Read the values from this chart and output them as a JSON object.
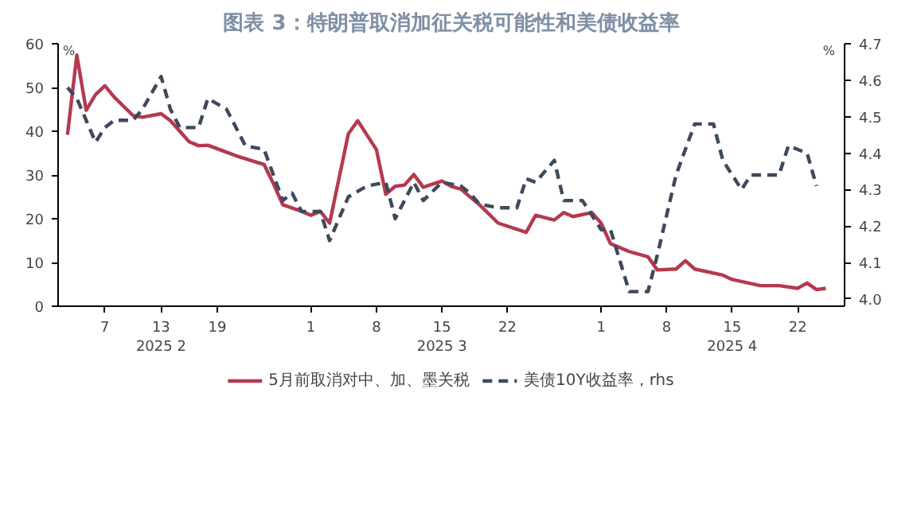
{
  "chart_data": {
    "type": "line",
    "title": "图表 3：特朗普取消加征关税可能性和美债收益率",
    "ylabel": "%",
    "y2label": "%",
    "xlim": [
      "2025-02-02",
      "2025-04-27"
    ],
    "xticks": [
      {
        "value": "2025-02-07",
        "label": "7"
      },
      {
        "value": "2025-02-13",
        "label": "13\n2025 2"
      },
      {
        "value": "2025-02-19",
        "label": "19"
      },
      {
        "value": "2025-03-01",
        "label": "1"
      },
      {
        "value": "2025-03-08",
        "label": "8"
      },
      {
        "value": "2025-03-15",
        "label": "15\n2025 3"
      },
      {
        "value": "2025-03-22",
        "label": "22"
      },
      {
        "value": "2025-04-01",
        "label": "1"
      },
      {
        "value": "2025-04-08",
        "label": "8"
      },
      {
        "value": "2025-04-15",
        "label": "15\n2025 4"
      },
      {
        "value": "2025-04-22",
        "label": "22"
      }
    ],
    "ylim": [
      0,
      60
    ],
    "yticks": [
      0,
      10,
      20,
      30,
      40,
      50,
      60
    ],
    "y2lim": [
      3.98,
      4.7
    ],
    "y2ticks": [
      {
        "value": 4.0,
        "label": "4.0"
      },
      4.1,
      4.2,
      4.3,
      4.4,
      4.5,
      4.6,
      4.7
    ],
    "legend": "bottom",
    "grid": false,
    "series": [
      {
        "name": "5月前取消对中、加、墨关税",
        "color": "#b5394f",
        "line_style": "solid",
        "x": [
          "2025-02-03",
          "2025-02-04",
          "2025-02-05",
          "2025-02-06",
          "2025-02-07",
          "2025-02-08",
          "2025-02-10",
          "2025-02-11",
          "2025-02-13",
          "2025-02-14",
          "2025-02-16",
          "2025-02-17",
          "2025-02-18",
          "2025-02-20",
          "2025-02-21",
          "2025-02-24",
          "2025-02-25",
          "2025-02-26",
          "2025-02-28",
          "2025-03-01",
          "2025-03-02",
          "2025-03-03",
          "2025-03-05",
          "2025-03-06",
          "2025-03-08",
          "2025-03-09",
          "2025-03-10",
          "2025-03-11",
          "2025-03-12",
          "2025-03-13",
          "2025-03-15",
          "2025-03-16",
          "2025-03-17",
          "2025-03-19",
          "2025-03-21",
          "2025-03-24",
          "2025-03-25",
          "2025-03-27",
          "2025-03-28",
          "2025-03-29",
          "2025-03-31",
          "2025-04-01",
          "2025-04-02",
          "2025-04-04",
          "2025-04-06",
          "2025-04-07",
          "2025-04-09",
          "2025-04-10",
          "2025-04-11",
          "2025-04-14",
          "2025-04-15",
          "2025-04-18",
          "2025-04-20",
          "2025-04-22",
          "2025-04-23",
          "2025-04-24",
          "2025-04-25"
        ],
        "values": [
          39.2,
          57.4,
          44.8,
          48.4,
          50.4,
          47.8,
          43.6,
          43.2,
          44,
          42.4,
          37.6,
          36.7,
          36.8,
          35.2,
          34.4,
          32.4,
          28,
          23.2,
          21.7,
          20.8,
          21.7,
          19,
          39.4,
          42.4,
          35.8,
          25.6,
          27.4,
          27.7,
          30.1,
          27.2,
          28.6,
          27.4,
          26.8,
          23.2,
          19,
          16.9,
          20.8,
          19.7,
          21.4,
          20.5,
          21.4,
          19,
          14.3,
          12.5,
          11.3,
          8.3,
          8.5,
          10.4,
          8.5,
          7.1,
          6.1,
          4.7,
          4.7,
          4.1,
          5.3,
          3.8,
          4.1
        ]
      },
      {
        "name": "美债10Y收益率，rhs",
        "color": "#3d4a5c",
        "line_style": "dashed",
        "axis": "y2",
        "x": [
          "2025-02-03",
          "2025-02-04",
          "2025-02-06",
          "2025-02-07",
          "2025-02-08",
          "2025-02-10",
          "2025-02-11",
          "2025-02-13",
          "2025-02-14",
          "2025-02-15",
          "2025-02-17",
          "2025-02-18",
          "2025-02-20",
          "2025-02-22",
          "2025-02-24",
          "2025-02-26",
          "2025-02-27",
          "2025-02-28",
          "2025-03-02",
          "2025-03-03",
          "2025-03-05",
          "2025-03-07",
          "2025-03-09",
          "2025-03-10",
          "2025-03-12",
          "2025-03-13",
          "2025-03-15",
          "2025-03-17",
          "2025-03-18",
          "2025-03-19",
          "2025-03-21",
          "2025-03-23",
          "2025-03-24",
          "2025-03-25",
          "2025-03-27",
          "2025-03-28",
          "2025-03-30",
          "2025-04-01",
          "2025-04-02",
          "2025-04-04",
          "2025-04-06",
          "2025-04-07",
          "2025-04-09",
          "2025-04-11",
          "2025-04-13",
          "2025-04-14",
          "2025-04-16",
          "2025-04-17",
          "2025-04-20",
          "2025-04-21",
          "2025-04-23",
          "2025-04-24"
        ],
        "values": [
          4.58,
          4.55,
          4.43,
          4.47,
          4.49,
          4.49,
          4.52,
          4.61,
          4.52,
          4.47,
          4.47,
          4.55,
          4.52,
          4.42,
          4.41,
          4.27,
          4.29,
          4.24,
          4.24,
          4.16,
          4.28,
          4.31,
          4.32,
          4.22,
          4.32,
          4.27,
          4.32,
          4.31,
          4.29,
          4.26,
          4.25,
          4.25,
          4.33,
          4.32,
          4.38,
          4.27,
          4.27,
          4.19,
          4.19,
          4.02,
          4.02,
          4.12,
          4.34,
          4.48,
          4.48,
          4.38,
          4.3,
          4.34,
          4.34,
          4.42,
          4.4,
          4.31
        ]
      }
    ]
  }
}
